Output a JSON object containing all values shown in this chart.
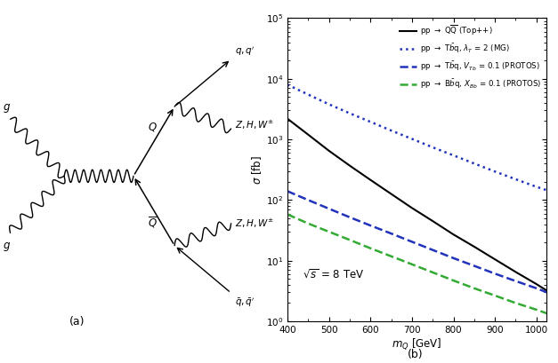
{
  "xlim": [
    400,
    1025
  ],
  "ylim_log": [
    1,
    100000.0
  ],
  "x_data": [
    400,
    450,
    500,
    550,
    600,
    650,
    700,
    750,
    800,
    850,
    900,
    950,
    1000,
    1025
  ],
  "QQbar": [
    2200,
    1200,
    650,
    370,
    215,
    126,
    74,
    45,
    27,
    17,
    10.5,
    6.5,
    4.1,
    3.2
  ],
  "Tbq_MG": [
    8000,
    5500,
    3800,
    2700,
    1950,
    1400,
    1020,
    740,
    545,
    400,
    295,
    220,
    165,
    145
  ],
  "Tbq_PROTOS": [
    140,
    100,
    72,
    52,
    38,
    28,
    20.5,
    15,
    11,
    8.2,
    6.1,
    4.6,
    3.5,
    3.0
  ],
  "Bbq_PROTOS": [
    58,
    41,
    30,
    22,
    16,
    11.8,
    8.7,
    6.4,
    4.7,
    3.5,
    2.65,
    2.0,
    1.55,
    1.35
  ]
}
